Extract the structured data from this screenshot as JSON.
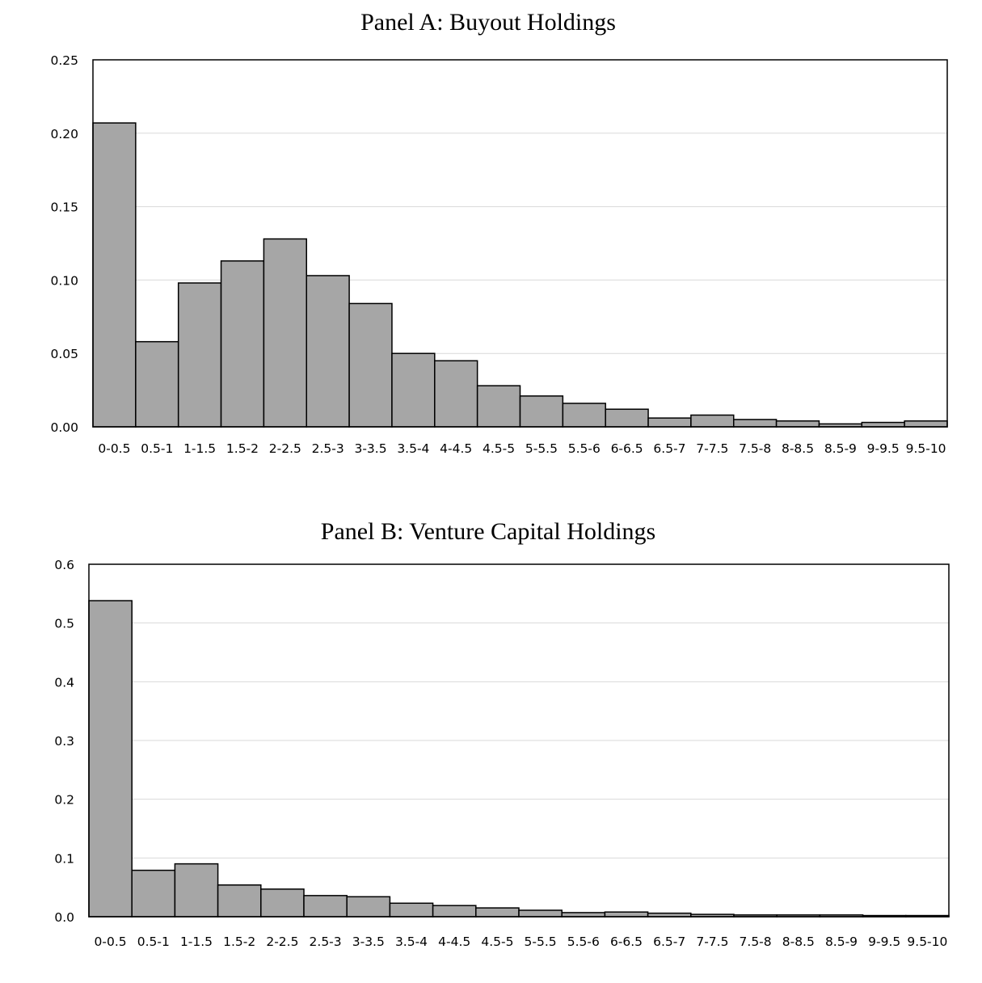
{
  "chart_data": [
    {
      "type": "bar",
      "title": "Panel A: Buyout Holdings",
      "xlabel": "",
      "ylabel": "",
      "ylim": [
        0,
        0.25
      ],
      "yticks": [
        "0.00",
        "0.05",
        "0.10",
        "0.15",
        "0.20",
        "0.25"
      ],
      "grid": true,
      "bar_color": "#a6a6a6",
      "categories": [
        "0-0.5",
        "0.5-1",
        "1-1.5",
        "1.5-2",
        "2-2.5",
        "2.5-3",
        "3-3.5",
        "3.5-4",
        "4-4.5",
        "4.5-5",
        "5-5.5",
        "5.5-6",
        "6-6.5",
        "6.5-7",
        "7-7.5",
        "7.5-8",
        "8-8.5",
        "8.5-9",
        "9-9.5",
        "9.5-10"
      ],
      "values": [
        0.207,
        0.058,
        0.098,
        0.113,
        0.128,
        0.103,
        0.084,
        0.05,
        0.045,
        0.028,
        0.021,
        0.016,
        0.012,
        0.006,
        0.008,
        0.005,
        0.004,
        0.002,
        0.003,
        0.004
      ]
    },
    {
      "type": "bar",
      "title": "Panel B: Venture Capital Holdings",
      "xlabel": "",
      "ylabel": "",
      "ylim": [
        0,
        0.6
      ],
      "yticks": [
        "0.0",
        "0.1",
        "0.2",
        "0.3",
        "0.4",
        "0.5",
        "0.6"
      ],
      "grid": true,
      "bar_color": "#a6a6a6",
      "categories": [
        "0-0.5",
        "0.5-1",
        "1-1.5",
        "1.5-2",
        "2-2.5",
        "2.5-3",
        "3-3.5",
        "3.5-4",
        "4-4.5",
        "4.5-5",
        "5-5.5",
        "5.5-6",
        "6-6.5",
        "6.5-7",
        "7-7.5",
        "7.5-8",
        "8-8.5",
        "8.5-9",
        "9-9.5",
        "9.5-10"
      ],
      "values": [
        0.538,
        0.079,
        0.09,
        0.054,
        0.047,
        0.036,
        0.034,
        0.023,
        0.019,
        0.015,
        0.011,
        0.007,
        0.008,
        0.006,
        0.004,
        0.003,
        0.003,
        0.003,
        0.002,
        0.002
      ]
    }
  ]
}
